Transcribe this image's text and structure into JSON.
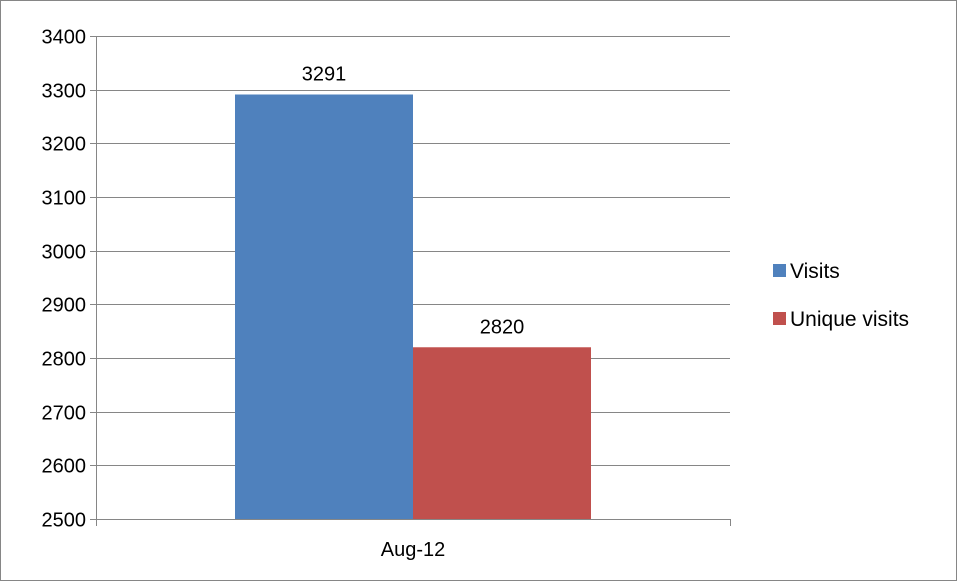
{
  "chart_data": {
    "type": "bar",
    "categories": [
      "Aug-12"
    ],
    "series": [
      {
        "name": "Visits",
        "values": [
          3291
        ],
        "color": "#4F81BD"
      },
      {
        "name": "Unique visits",
        "values": [
          2820
        ],
        "color": "#C0504D"
      }
    ],
    "ylim": [
      2500,
      3400
    ],
    "yticks": [
      2500,
      2600,
      2700,
      2800,
      2900,
      3000,
      3100,
      3200,
      3300,
      3400
    ],
    "grid": true,
    "legend": "right",
    "data_labels": true
  }
}
